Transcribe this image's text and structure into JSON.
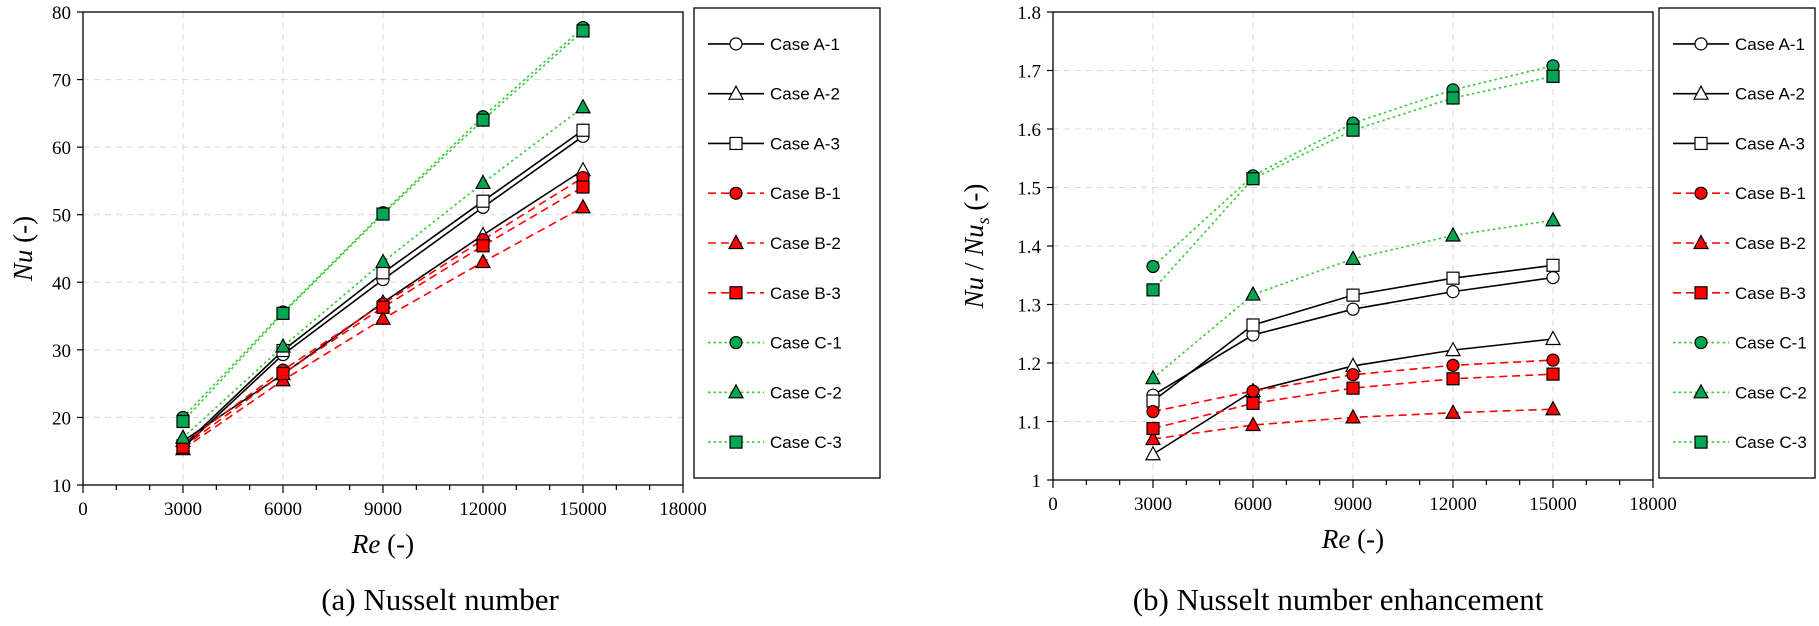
{
  "chart_data": [
    {
      "type": "line",
      "caption": "(a) Nusselt number",
      "xlabel": "Re (-)",
      "ylabel": "Nu (-)",
      "xlim": [
        0,
        18000
      ],
      "ylim": [
        10,
        80
      ],
      "xticks": [
        0,
        3000,
        6000,
        9000,
        12000,
        15000,
        18000
      ],
      "yticks": [
        10,
        20,
        30,
        40,
        50,
        60,
        70,
        80
      ],
      "grid": true,
      "legend_position": "right",
      "x": [
        3000,
        6000,
        9000,
        12000,
        15000
      ],
      "series": [
        {
          "name": "Case A-1",
          "marker": "circle",
          "line": "solid",
          "line_color": "#000000",
          "marker_fill": "#ffffff",
          "values": [
            15.5,
            29.3,
            40.4,
            51.1,
            61.6
          ]
        },
        {
          "name": "Case A-2",
          "marker": "triangle",
          "line": "solid",
          "line_color": "#000000",
          "marker_fill": "#ffffff",
          "values": [
            16.5,
            26.4,
            37.0,
            47.0,
            56.6
          ]
        },
        {
          "name": "Case A-3",
          "marker": "square",
          "line": "solid",
          "line_color": "#000000",
          "marker_fill": "#ffffff",
          "values": [
            15.8,
            29.9,
            41.4,
            52.0,
            62.5
          ]
        },
        {
          "name": "Case B-1",
          "marker": "circle",
          "line": "dashed",
          "line_color": "#ff0000",
          "marker_fill": "#ff0000",
          "values": [
            16.1,
            27.0,
            36.8,
            46.3,
            55.5
          ]
        },
        {
          "name": "Case B-2",
          "marker": "triangle",
          "line": "dashed",
          "line_color": "#ff0000",
          "marker_fill": "#ff0000",
          "values": [
            15.3,
            25.5,
            34.6,
            43.0,
            51.1
          ]
        },
        {
          "name": "Case B-3",
          "marker": "square",
          "line": "dashed",
          "line_color": "#ff0000",
          "marker_fill": "#ff0000",
          "values": [
            15.6,
            26.5,
            36.3,
            45.4,
            54.1
          ]
        },
        {
          "name": "Case C-1",
          "marker": "circle",
          "line": "dotted",
          "line_color": "#33cc33",
          "marker_fill": "#00a651",
          "values": [
            20.0,
            35.6,
            50.3,
            64.5,
            77.7
          ]
        },
        {
          "name": "Case C-2",
          "marker": "triangle",
          "line": "dotted",
          "line_color": "#33cc33",
          "marker_fill": "#00a651",
          "values": [
            17.0,
            30.5,
            43.0,
            54.7,
            65.9
          ]
        },
        {
          "name": "Case C-3",
          "marker": "square",
          "line": "dotted",
          "line_color": "#33cc33",
          "marker_fill": "#00a651",
          "values": [
            19.4,
            35.4,
            50.1,
            64.0,
            77.2
          ]
        }
      ]
    },
    {
      "type": "line",
      "caption": "(b) Nusselt number enhancement",
      "xlabel": "Re (-)",
      "ylabel": "Nu / Nus (-)",
      "xlim": [
        0,
        18000
      ],
      "ylim": [
        1.0,
        1.8
      ],
      "xticks": [
        0,
        3000,
        6000,
        9000,
        12000,
        15000,
        18000
      ],
      "yticks": [
        1,
        1.1,
        1.2,
        1.3,
        1.4,
        1.5,
        1.6,
        1.7,
        1.8
      ],
      "grid": true,
      "legend_position": "right",
      "x": [
        3000,
        6000,
        9000,
        12000,
        15000
      ],
      "series": [
        {
          "name": "Case A-1",
          "marker": "circle",
          "line": "solid",
          "line_color": "#000000",
          "marker_fill": "#ffffff",
          "values": [
            1.145,
            1.248,
            1.292,
            1.322,
            1.346
          ]
        },
        {
          "name": "Case A-2",
          "marker": "triangle",
          "line": "solid",
          "line_color": "#000000",
          "marker_fill": "#ffffff",
          "values": [
            1.044,
            1.152,
            1.195,
            1.222,
            1.241
          ]
        },
        {
          "name": "Case A-3",
          "marker": "square",
          "line": "solid",
          "line_color": "#000000",
          "marker_fill": "#ffffff",
          "values": [
            1.135,
            1.265,
            1.316,
            1.345,
            1.367
          ]
        },
        {
          "name": "Case B-1",
          "marker": "circle",
          "line": "dashed",
          "line_color": "#ff0000",
          "marker_fill": "#ff0000",
          "values": [
            1.117,
            1.152,
            1.18,
            1.196,
            1.205
          ]
        },
        {
          "name": "Case B-2",
          "marker": "triangle",
          "line": "dashed",
          "line_color": "#ff0000",
          "marker_fill": "#ff0000",
          "values": [
            1.07,
            1.094,
            1.107,
            1.115,
            1.121
          ]
        },
        {
          "name": "Case B-3",
          "marker": "square",
          "line": "dashed",
          "line_color": "#ff0000",
          "marker_fill": "#ff0000",
          "values": [
            1.088,
            1.131,
            1.157,
            1.173,
            1.181
          ]
        },
        {
          "name": "Case C-1",
          "marker": "circle",
          "line": "dotted",
          "line_color": "#33cc33",
          "marker_fill": "#00a651",
          "values": [
            1.365,
            1.52,
            1.61,
            1.667,
            1.708
          ]
        },
        {
          "name": "Case C-2",
          "marker": "triangle",
          "line": "dotted",
          "line_color": "#33cc33",
          "marker_fill": "#00a651",
          "values": [
            1.174,
            1.317,
            1.378,
            1.418,
            1.444
          ]
        },
        {
          "name": "Case C-3",
          "marker": "square",
          "line": "dotted",
          "line_color": "#33cc33",
          "marker_fill": "#00a651",
          "values": [
            1.325,
            1.515,
            1.598,
            1.653,
            1.69
          ]
        }
      ]
    }
  ]
}
